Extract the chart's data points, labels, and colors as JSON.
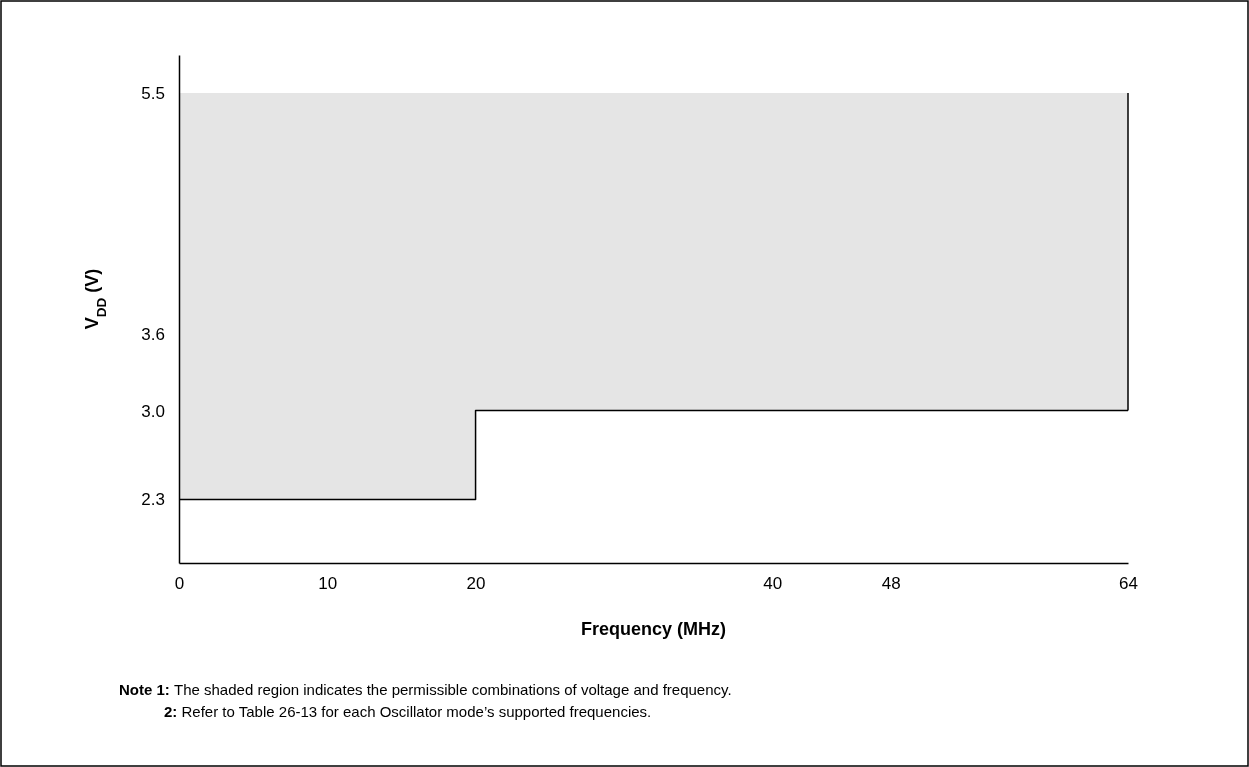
{
  "chart_data": {
    "type": "step",
    "xlabel": "Frequency (MHz)",
    "ylabel": "V$_{DD}$ (V)",
    "x": [
      0,
      20,
      64
    ],
    "series": [
      {
        "color": "#000000",
        "values": [
          2.3,
          3.0,
          3.0
        ],
        "lower": [
          2.3,
          3.0,
          3.0
        ],
        "upper": [
          5.5,
          5.5,
          5.5
        ]
      }
    ],
    "xlim": [
      0,
      64
    ],
    "xticks": [
      0,
      10,
      20,
      40,
      48,
      64
    ],
    "ylim": [
      1.8,
      5.8
    ],
    "yticks": [
      2.3,
      {
        "value": 3,
        "label": "3.0"
      },
      3.6,
      5.5
    ],
    "grid": false,
    "annotations": [
      "Note 1: The shaded region indicates the permissible combinations of voltage and frequency.",
      "2: Refer to Table 26-13 for each Oscillator mode’s supported frequencies."
    ]
  }
}
